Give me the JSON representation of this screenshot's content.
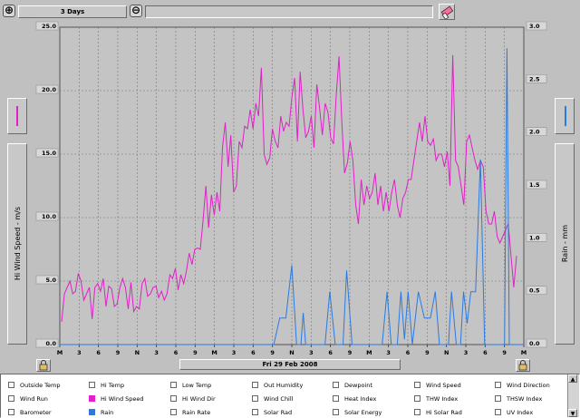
{
  "toolbar": {
    "range_label": "3 Days",
    "date_label": "Fri 29 Feb 2008"
  },
  "colors": {
    "wind": "#e020c8",
    "rain": "#2a7ae0",
    "plot_bg": "#c4c4c4"
  },
  "left_axis_label": "Hi Wind Speed - m/s",
  "right_axis_label": "Rain - mm",
  "chart_data": {
    "type": "line",
    "x_ticks": [
      "M",
      "3",
      "6",
      "9",
      "N",
      "3",
      "6",
      "9",
      "M",
      "3",
      "6",
      "9",
      "N",
      "3",
      "6",
      "9",
      "M",
      "3",
      "6",
      "9",
      "N",
      "3",
      "6",
      "9",
      "M"
    ],
    "left_ticks": [
      "25.0",
      "20.0",
      "15.0",
      "10.0",
      "5.0",
      "0.0"
    ],
    "right_ticks": [
      "3.0",
      "2.5",
      "2.0",
      "1.5",
      "1.0",
      "0.5",
      "0.0"
    ],
    "y_left_lim": [
      0,
      25
    ],
    "y_right_lim": [
      0,
      3
    ],
    "x_hours": 72,
    "grid": true,
    "series": [
      {
        "name": "Hi Wind Speed",
        "axis": "left",
        "values": [
          1.8,
          4.0,
          4.5,
          5.0,
          4.0,
          4.2,
          5.6,
          5.0,
          3.5,
          4.0,
          4.5,
          2.0,
          4.5,
          4.8,
          4.2,
          5.2,
          3.0,
          4.6,
          4.4,
          3.0,
          3.2,
          4.5,
          5.2,
          4.5,
          2.8,
          4.9,
          2.6,
          3.0,
          2.8,
          4.8,
          5.2,
          3.8,
          4.0,
          4.5,
          4.6,
          3.7,
          4.2,
          3.5,
          4.0,
          5.5,
          5.2,
          6.0,
          4.3,
          5.5,
          4.8,
          5.8,
          7.2,
          6.3,
          7.5,
          7.6,
          7.5,
          9.8,
          12.5,
          9.2,
          11.8,
          10.2,
          12.0,
          10.5,
          15.5,
          17.5,
          14.0,
          16.5,
          12.0,
          12.5,
          16.0,
          15.5,
          17.2,
          17.0,
          18.5,
          17.0,
          19.0,
          18.0,
          21.8,
          15.0,
          14.2,
          14.7,
          17.0,
          16.0,
          15.5,
          18.0,
          16.8,
          17.5,
          17.2,
          19.5,
          21.0,
          16.0,
          21.5,
          18.5,
          16.3,
          16.8,
          18.0,
          15.5,
          20.5,
          18.6,
          16.5,
          19.0,
          18.3,
          16.3,
          15.8,
          19.6,
          22.7,
          17.5,
          13.5,
          14.3,
          16.0,
          14.5,
          11.0,
          9.5,
          13.0,
          11.0,
          12.5,
          11.5,
          12.0,
          13.5,
          11.0,
          12.5,
          10.5,
          12.0,
          10.5,
          12.0,
          13.0,
          11.0,
          10.0,
          11.5,
          12.0,
          13.0,
          13.0,
          14.5,
          16.0,
          17.5,
          16.0,
          18.0,
          16.0,
          15.7,
          16.2,
          14.5,
          15.0,
          15.0,
          14.0,
          15.2,
          12.5,
          22.8,
          14.5,
          14.0,
          12.5,
          11.0,
          16.0,
          16.5,
          15.5,
          14.5,
          13.8,
          14.5,
          14.0,
          10.5,
          9.5,
          9.5,
          10.5,
          8.5,
          8.0,
          8.5,
          9.0,
          9.5,
          7.0,
          4.5,
          7.0
        ]
      },
      {
        "name": "Rain",
        "axis": "right",
        "points": [
          [
            0,
            0
          ],
          [
            35.5,
            0
          ],
          [
            36.5,
            0.25
          ],
          [
            37.5,
            0.25
          ],
          [
            38.5,
            0.75
          ],
          [
            39.3,
            0
          ],
          [
            40,
            0
          ],
          [
            40.4,
            0.3
          ],
          [
            40.8,
            0
          ],
          [
            44,
            0
          ],
          [
            44.8,
            0.5
          ],
          [
            45.7,
            0
          ],
          [
            47,
            0
          ],
          [
            47.6,
            0.7
          ],
          [
            48.5,
            0
          ],
          [
            53.5,
            0
          ],
          [
            54.3,
            0.5
          ],
          [
            55,
            0
          ],
          [
            56,
            0
          ],
          [
            56.6,
            0.5
          ],
          [
            57.2,
            0.05
          ],
          [
            57.8,
            0.5
          ],
          [
            58.5,
            0
          ],
          [
            59.5,
            0.5
          ],
          [
            60.5,
            0.25
          ],
          [
            61.5,
            0.25
          ],
          [
            62.3,
            0.5
          ],
          [
            63,
            0
          ],
          [
            64.5,
            0
          ],
          [
            65,
            0.5
          ],
          [
            65.8,
            0
          ],
          [
            66.5,
            0
          ],
          [
            67,
            0.5
          ],
          [
            67.6,
            0.2
          ],
          [
            68.2,
            0.5
          ],
          [
            69,
            0.5
          ],
          [
            69.8,
            1.75
          ],
          [
            70.5,
            0
          ],
          [
            72,
            0
          ],
          [
            73.8,
            0
          ],
          [
            74.2,
            2.8
          ],
          [
            74.6,
            0
          ],
          [
            77,
            0
          ]
        ]
      }
    ],
    "note_rain_axis_hours": "rain x in hours from first M tick"
  },
  "legend": [
    {
      "label": "Outside Temp",
      "state": "off"
    },
    {
      "label": "Hi Temp",
      "state": "off"
    },
    {
      "label": "Low Temp",
      "state": "off"
    },
    {
      "label": "Out Humidity",
      "state": "off"
    },
    {
      "label": "Dewpoint",
      "state": "off"
    },
    {
      "label": "Wind Speed",
      "state": "off"
    },
    {
      "label": "Wind Direction",
      "state": "off"
    },
    {
      "label": "Wind Run",
      "state": "off"
    },
    {
      "label": "Hi Wind Speed",
      "state": "on",
      "color": "#e020c8"
    },
    {
      "label": "Hi Wind Dir",
      "state": "off"
    },
    {
      "label": "Wind Chill",
      "state": "off"
    },
    {
      "label": "Heat Index",
      "state": "off"
    },
    {
      "label": "THW Index",
      "state": "off"
    },
    {
      "label": "THSW Index",
      "state": "off"
    },
    {
      "label": "Barometer",
      "state": "off"
    },
    {
      "label": "Rain",
      "state": "on",
      "color": "#2a7ae0"
    },
    {
      "label": "Rain Rate",
      "state": "off"
    },
    {
      "label": "Solar Rad",
      "state": "off"
    },
    {
      "label": "Solar Energy",
      "state": "off"
    },
    {
      "label": "Hi Solar Rad",
      "state": "off"
    },
    {
      "label": "UV Index",
      "state": "off"
    }
  ]
}
